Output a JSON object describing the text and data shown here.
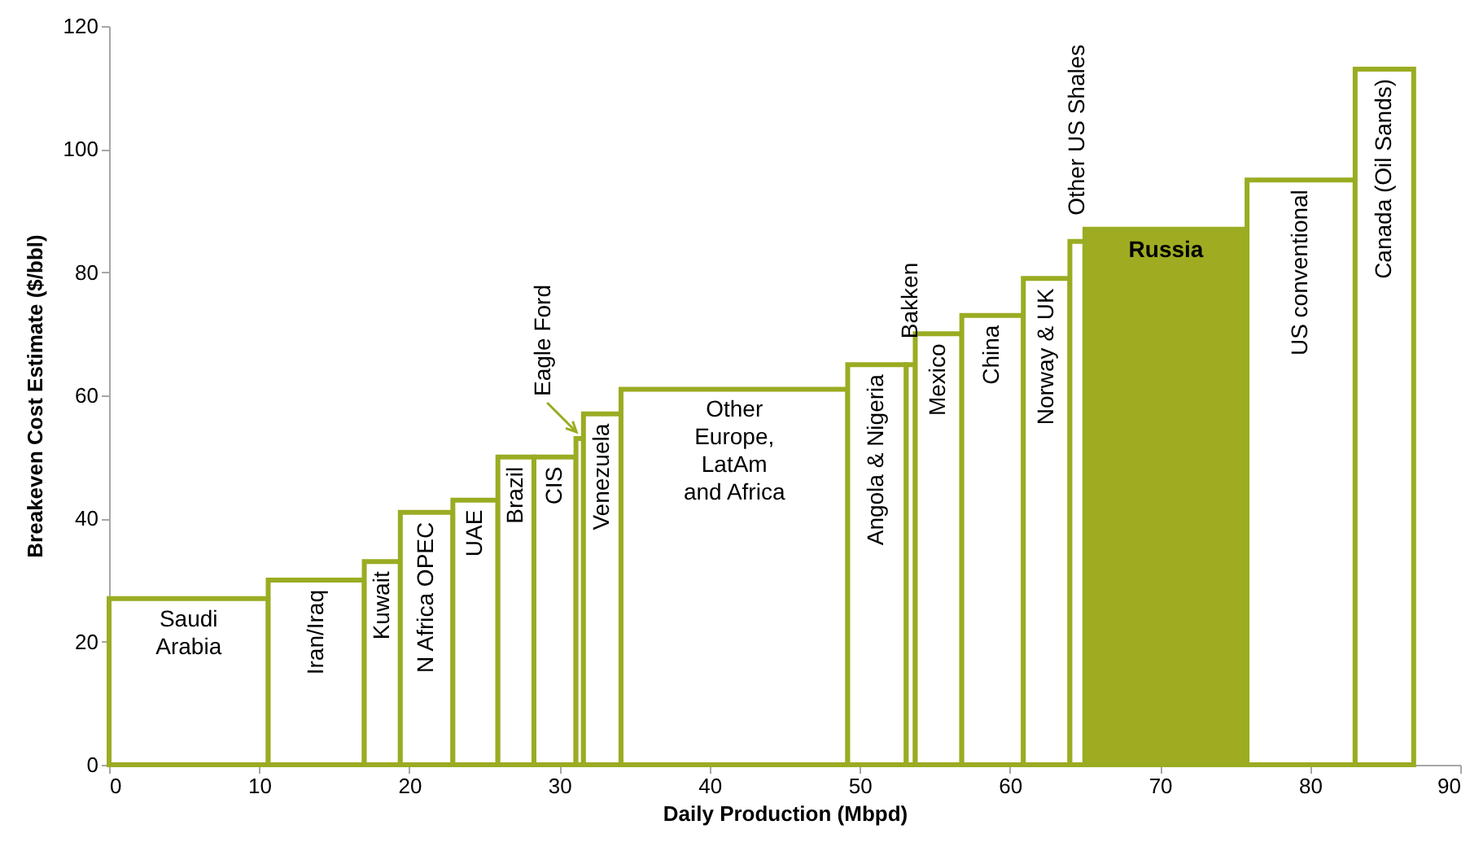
{
  "chart_data": {
    "type": "histogram",
    "xlabel": "Daily Production (Mbpd)",
    "ylabel": "Breakeven Cost Estimate ($/bbl)",
    "bins": [
      0,
      10.6,
      17.0,
      19.4,
      22.9,
      25.9,
      28.3,
      31.1,
      31.6,
      34.1,
      49.2,
      53.1,
      53.7,
      56.8,
      60.9,
      64.0,
      65.0,
      75.8,
      83.0,
      86.9
    ],
    "values": [
      27,
      30,
      33,
      41,
      43,
      50,
      50,
      53,
      57,
      61,
      65,
      65,
      70,
      73,
      79,
      85,
      87,
      95,
      113
    ],
    "color": "#9aac22",
    "colors": [
      "#ffffff",
      "#ffffff",
      "#ffffff",
      "#ffffff",
      "#ffffff",
      "#ffffff",
      "#ffffff",
      "#ffffff",
      "#ffffff",
      "#ffffff",
      "#ffffff",
      "#ffffff",
      "#ffffff",
      "#ffffff",
      "#ffffff",
      "#ffffff",
      "#9fac22",
      "#ffffff",
      "#ffffff"
    ],
    "xlim": [
      0,
      90
    ],
    "xticks": [
      0,
      10,
      20,
      30,
      40,
      50,
      60,
      70,
      80,
      90
    ],
    "ylim": [
      0,
      120
    ],
    "yticks": [
      0,
      20,
      40,
      60,
      80,
      100,
      120
    ],
    "grid": false,
    "annotations": [
      {
        "text": "Saudi\nArabia",
        "x": 5.3,
        "y": 27
      },
      {
        "text": "Iran/Iraq",
        "x": 13.8,
        "y": 30
      },
      {
        "text": "Kuwait",
        "x": 18.2,
        "y": 33
      },
      {
        "text": "N Africa OPEC",
        "x": 21.15,
        "y": 41
      },
      {
        "text": "UAE",
        "x": 24.4,
        "y": 43
      },
      {
        "text": "Brazil",
        "x": 27.1,
        "y": 50
      },
      {
        "text": "CIS",
        "x": 29.7,
        "y": 50
      },
      {
        "text": "Eagle Ford",
        "x": 31.35,
        "y": 53
      },
      {
        "text": "Venezuela",
        "x": 32.85,
        "y": 57
      },
      {
        "text": "Other\nEurope,\nLatAm\nand Africa",
        "x": 41.65,
        "y": 61
      },
      {
        "text": "Angola & Nigeria",
        "x": 51.15,
        "y": 65
      },
      {
        "text": "Bakken",
        "x": 53.4,
        "y": 65
      },
      {
        "text": "Mexico",
        "x": 55.25,
        "y": 70
      },
      {
        "text": "China",
        "x": 58.85,
        "y": 73
      },
      {
        "text": "Norway & UK",
        "x": 62.45,
        "y": 79
      },
      {
        "text": "Other US Shales",
        "x": 64.5,
        "y": 85
      },
      {
        "text": "Russia",
        "x": 70.4,
        "y": 87
      },
      {
        "text": "US conventional",
        "x": 79.4,
        "y": 95
      },
      {
        "text": "Canada (Oil Sands)",
        "x": 84.95,
        "y": 113
      }
    ]
  }
}
